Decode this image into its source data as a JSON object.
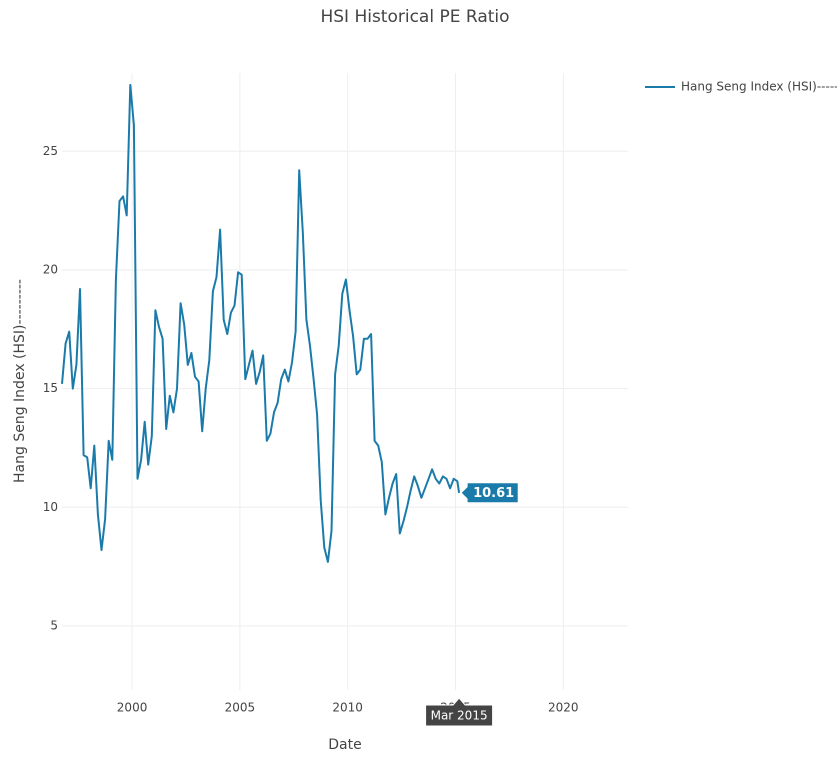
{
  "chart_data": {
    "type": "line",
    "title": "HSI Historical PE Ratio",
    "x_label": "Date",
    "y_label": "Hang Seng Index (HSI)---------",
    "x": [
      "1996-10",
      "1996-12",
      "1997-02",
      "1997-04",
      "1997-06",
      "1997-08",
      "1997-10",
      "1997-12",
      "1998-02",
      "1998-04",
      "1998-06",
      "1998-08",
      "1998-10",
      "1998-12",
      "1999-02",
      "1999-04",
      "1999-06",
      "1999-08",
      "1999-10",
      "1999-12",
      "2000-02",
      "2000-04",
      "2000-06",
      "2000-08",
      "2000-10",
      "2000-12",
      "2001-02",
      "2001-04",
      "2001-06",
      "2001-08",
      "2001-10",
      "2001-12",
      "2002-02",
      "2002-04",
      "2002-06",
      "2002-08",
      "2002-10",
      "2002-12",
      "2003-02",
      "2003-04",
      "2003-06",
      "2003-08",
      "2003-10",
      "2003-12",
      "2004-02",
      "2004-04",
      "2004-06",
      "2004-08",
      "2004-10",
      "2004-12",
      "2005-02",
      "2005-04",
      "2005-06",
      "2005-08",
      "2005-10",
      "2005-12",
      "2006-02",
      "2006-04",
      "2006-06",
      "2006-08",
      "2006-10",
      "2006-12",
      "2007-02",
      "2007-04",
      "2007-06",
      "2007-08",
      "2007-10",
      "2007-12",
      "2008-02",
      "2008-04",
      "2008-06",
      "2008-08",
      "2008-10",
      "2008-12",
      "2009-02",
      "2009-04",
      "2009-06",
      "2009-08",
      "2009-10",
      "2009-12",
      "2010-02",
      "2010-04",
      "2010-06",
      "2010-08",
      "2010-10",
      "2010-12",
      "2011-02",
      "2011-04",
      "2011-06",
      "2011-08",
      "2011-10",
      "2011-12",
      "2012-02",
      "2012-04",
      "2012-06",
      "2012-08",
      "2012-10",
      "2012-12",
      "2013-02",
      "2013-04",
      "2013-06",
      "2013-08",
      "2013-10",
      "2013-12",
      "2014-02",
      "2014-04",
      "2014-06",
      "2014-08",
      "2014-10",
      "2014-12",
      "2015-02",
      "2015-03"
    ],
    "series": [
      {
        "name": "Hang Seng Index (HSI)--------",
        "color": "#1a7bab",
        "values": [
          15.2,
          16.9,
          17.4,
          15.0,
          16.0,
          19.2,
          12.2,
          12.1,
          10.8,
          12.6,
          9.7,
          8.2,
          9.5,
          12.8,
          12.0,
          19.6,
          22.9,
          23.1,
          22.3,
          27.8,
          26.1,
          11.2,
          12.0,
          13.6,
          11.8,
          13.0,
          18.3,
          17.6,
          17.1,
          13.3,
          14.7,
          14.0,
          15.0,
          18.6,
          17.7,
          16.0,
          16.5,
          15.5,
          15.3,
          13.2,
          15.0,
          16.2,
          19.1,
          19.7,
          21.7,
          17.9,
          17.3,
          18.2,
          18.5,
          19.9,
          19.8,
          15.4,
          16.0,
          16.6,
          15.2,
          15.7,
          16.4,
          12.8,
          13.1,
          14.0,
          14.4,
          15.4,
          15.8,
          15.3,
          16.1,
          17.4,
          24.2,
          21.6,
          17.9,
          16.8,
          15.4,
          13.9,
          10.3,
          8.3,
          7.7,
          9.0,
          15.6,
          16.8,
          19.0,
          19.6,
          18.3,
          17.2,
          15.6,
          15.8,
          17.1,
          17.1,
          17.3,
          12.8,
          12.6,
          11.9,
          9.7,
          10.4,
          11.0,
          11.4,
          8.9,
          9.4,
          10.0,
          10.7,
          11.3,
          10.9,
          10.4,
          10.8,
          11.2,
          11.6,
          11.2,
          11.0,
          11.3,
          11.2,
          10.8,
          11.2,
          11.1,
          10.61
        ]
      }
    ],
    "xlim": [
      "1996-10",
      "2023-01"
    ],
    "xticks": [
      2000,
      2005,
      2010,
      2015,
      2020
    ],
    "ylim": [
      2.3,
      28.3
    ],
    "yticks": [
      5,
      10,
      15,
      20,
      25
    ],
    "grid": true,
    "legend": "top-right",
    "hover": {
      "x": "Mar 2015",
      "y": 10.61
    }
  }
}
